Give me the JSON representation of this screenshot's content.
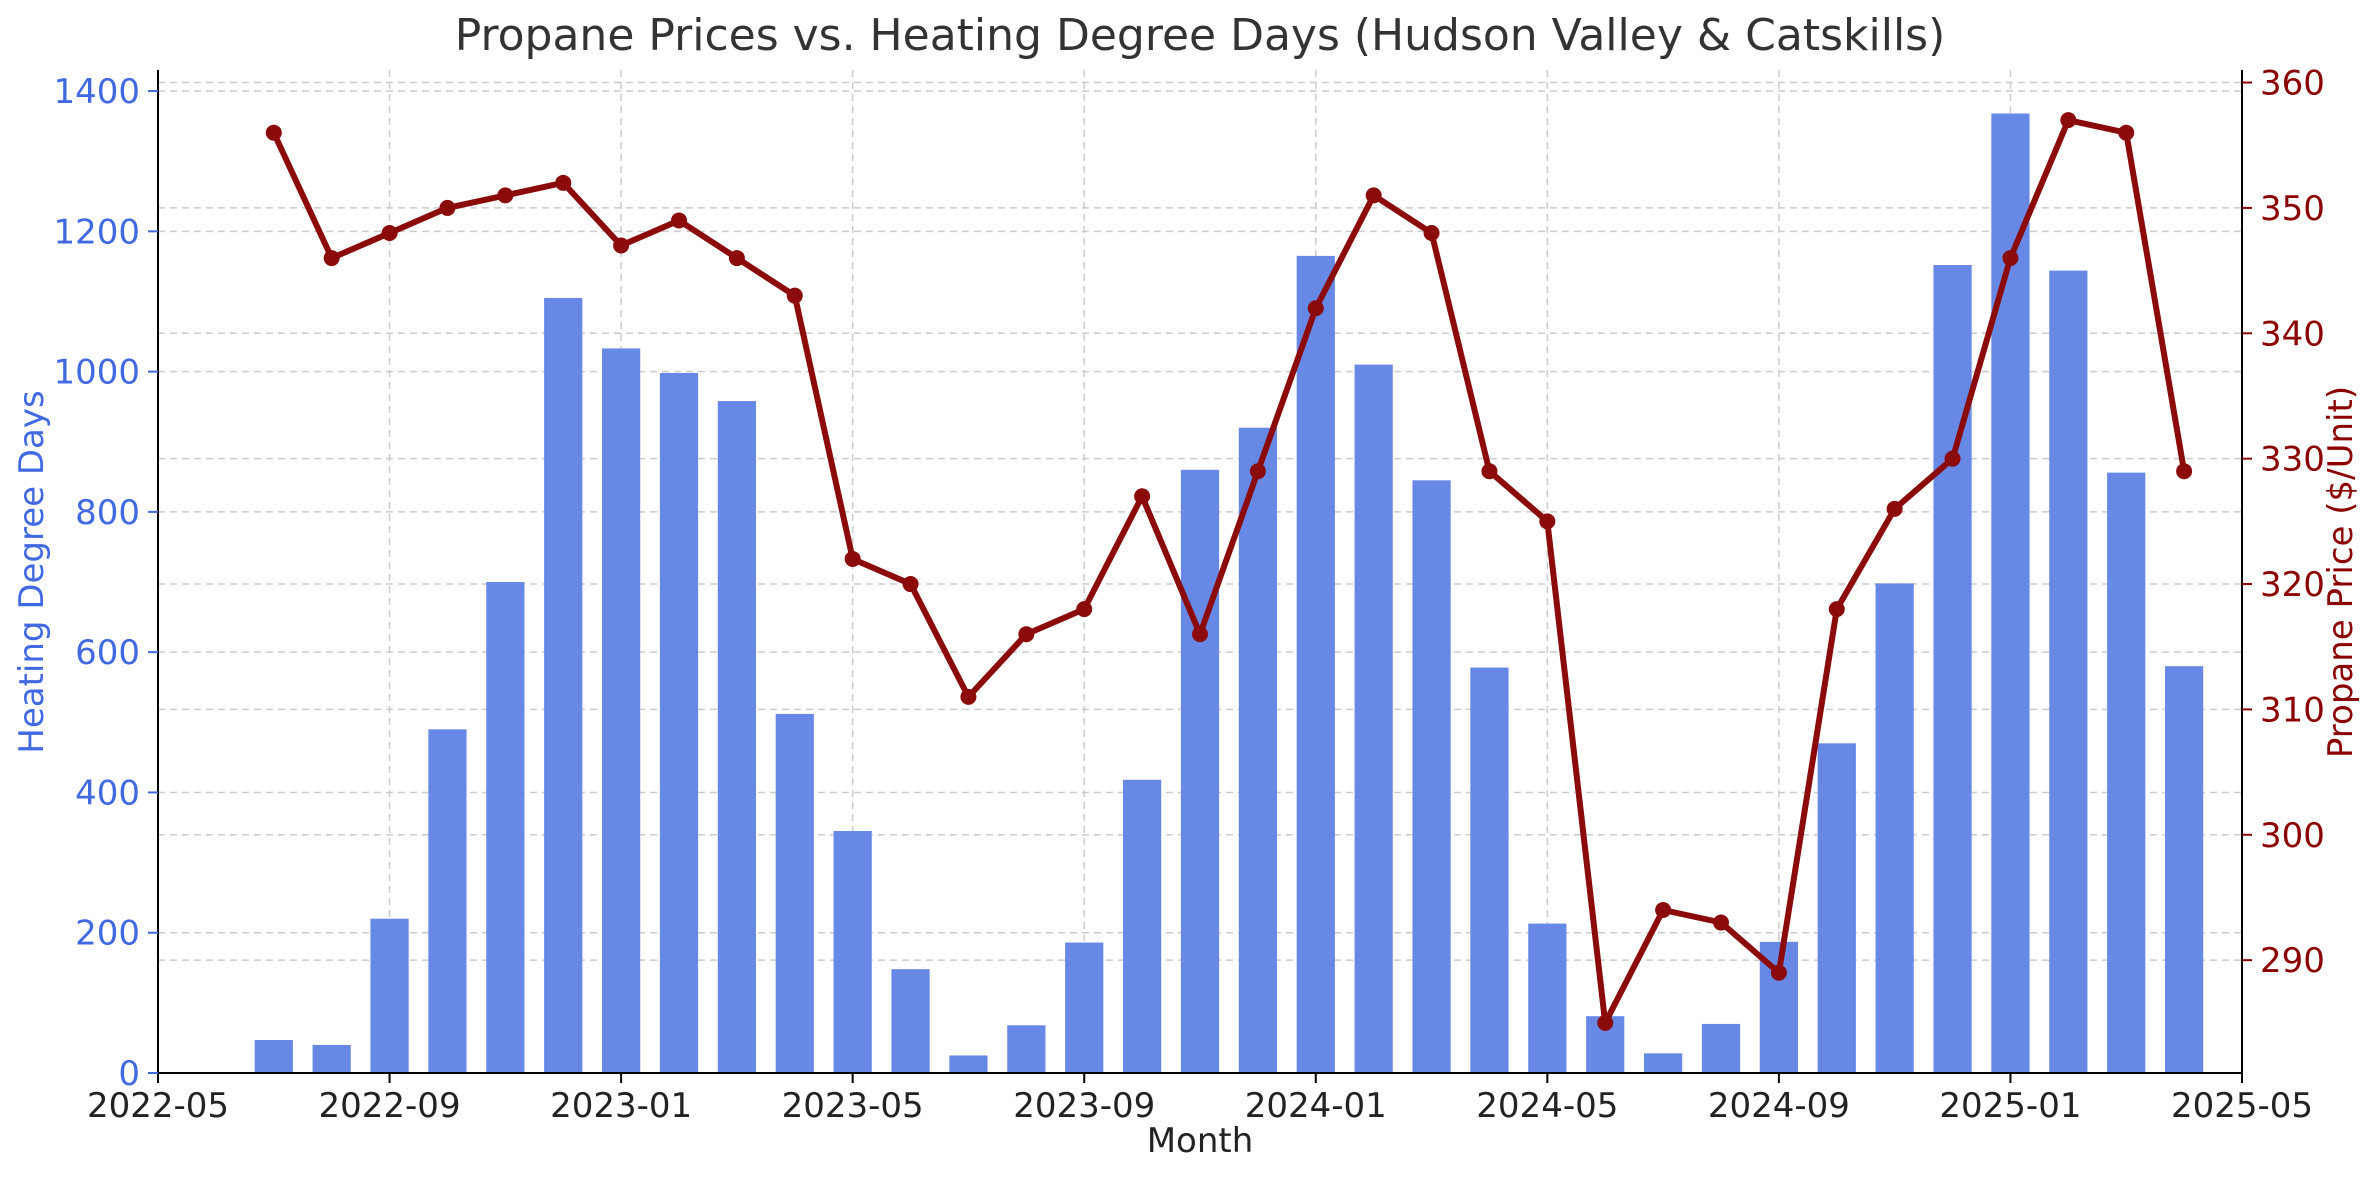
{
  "chart_data": {
    "type": "bar+line",
    "title": "Propane Prices vs. Heating Degree Days (Hudson Valley & Catskills)",
    "xlabel": "Month",
    "ylabel_left": "Heating Degree Days",
    "ylabel_right": "Propane Price ($/Unit)",
    "x_ticks": [
      "2022-05",
      "2022-09",
      "2023-01",
      "2023-05",
      "2023-09",
      "2024-01",
      "2024-05",
      "2024-09",
      "2025-01",
      "2025-05"
    ],
    "x_range": [
      "2022-05",
      "2025-05"
    ],
    "ylim_left": [
      0,
      1430
    ],
    "ylim_right": [
      281,
      361
    ],
    "yticks_left": [
      0,
      200,
      400,
      600,
      800,
      1000,
      1200,
      1400
    ],
    "yticks_right": [
      290,
      300,
      310,
      320,
      330,
      340,
      350,
      360
    ],
    "grid": true,
    "colors": {
      "bars": "#6788e5",
      "line": "#8b0a0a",
      "left_axis": "#4169e1",
      "right_axis": "#8b0000",
      "grid": "#cccccc"
    },
    "months": [
      "2022-07",
      "2022-08",
      "2022-09",
      "2022-10",
      "2022-11",
      "2022-12",
      "2023-01",
      "2023-02",
      "2023-03",
      "2023-04",
      "2023-05",
      "2023-06",
      "2023-07",
      "2023-08",
      "2023-09",
      "2023-10",
      "2023-11",
      "2023-12",
      "2024-01",
      "2024-02",
      "2024-03",
      "2024-04",
      "2024-05",
      "2024-06",
      "2024-07",
      "2024-08",
      "2024-09",
      "2024-10",
      "2024-11",
      "2024-12",
      "2025-01",
      "2025-02",
      "2025-03",
      "2025-04"
    ],
    "series": [
      {
        "name": "Heating Degree Days",
        "kind": "bar",
        "axis": "left",
        "values": [
          47,
          40,
          220,
          490,
          700,
          1105,
          1033,
          998,
          958,
          512,
          345,
          148,
          25,
          68,
          186,
          418,
          860,
          920,
          1165,
          1010,
          845,
          578,
          213,
          81,
          28,
          70,
          187,
          470,
          698,
          1152,
          1368,
          1144,
          856,
          580
        ]
      },
      {
        "name": "Propane Price",
        "kind": "line",
        "axis": "right",
        "values": [
          356,
          346,
          348,
          350,
          351,
          352,
          347,
          349,
          346,
          343,
          322,
          320,
          311,
          316,
          318,
          327,
          316,
          329,
          342,
          351,
          348,
          329,
          325,
          285,
          294,
          293,
          289,
          318,
          326,
          330,
          346,
          357,
          356,
          329
        ]
      }
    ]
  }
}
